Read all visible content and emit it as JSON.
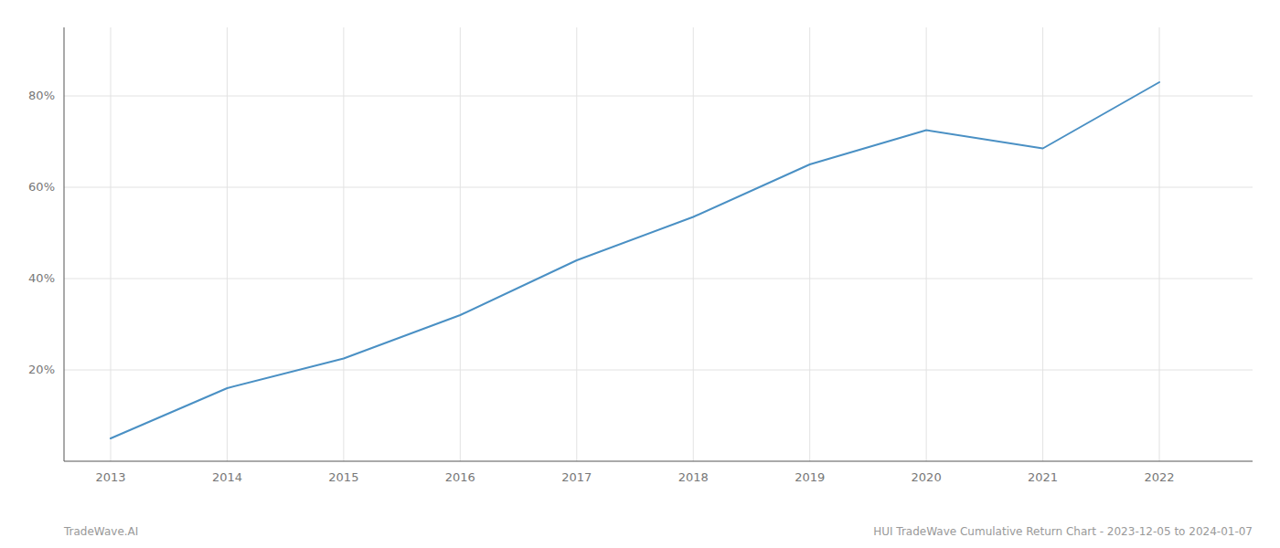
{
  "chart_data": {
    "type": "line",
    "x": [
      2013,
      2014,
      2015,
      2016,
      2017,
      2018,
      2019,
      2020,
      2021,
      2022
    ],
    "values": [
      5.0,
      16.0,
      22.5,
      32.0,
      44.0,
      53.5,
      65.0,
      72.5,
      68.5,
      83.0
    ],
    "color": "#4a90c4",
    "xlim": [
      2012.6,
      2022.8
    ],
    "xticks": [
      2013,
      2014,
      2015,
      2016,
      2017,
      2018,
      2019,
      2020,
      2021,
      2022
    ],
    "ylim": [
      0,
      95
    ],
    "yticks": [
      {
        "value": 20,
        "label": "20%"
      },
      {
        "value": 40,
        "label": "40%"
      },
      {
        "value": 60,
        "label": "60%"
      },
      {
        "value": 80,
        "label": "80%"
      }
    ],
    "grid": true,
    "annotations": [
      "TradeWave.AI",
      "HUI TradeWave Cumulative Return Chart - 2023-12-05 to 2024-01-07"
    ]
  }
}
